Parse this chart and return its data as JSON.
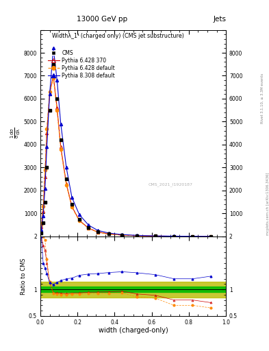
{
  "title_top": "13000 GeV pp",
  "title_right": "Jets",
  "plot_title": "Widthλ_1¹ (charged only) (CMS jet substructure)",
  "xlabel": "width (charged-only)",
  "ylabel_ratio": "Ratio to CMS",
  "watermark": "CMS_2021_I1920187",
  "right_label_top": "Rivet 3.1.10, ≥ 3.3M events",
  "right_label_bot": "mcplots.cern.ch [arXiv:1306.3436]",
  "xlim": [
    0.0,
    1.0
  ],
  "ylim_main": [
    0,
    9000
  ],
  "ylim_ratio": [
    0.5,
    2.0
  ],
  "yticks_main": [
    0,
    1000,
    2000,
    3000,
    4000,
    5000,
    6000,
    7000,
    8000,
    9000
  ],
  "ytick_labels_main": [
    "",
    "1000",
    "2000",
    "3000",
    "4000",
    "5000",
    "6000",
    "7000",
    "8000",
    ""
  ],
  "x_data": [
    0.005,
    0.015,
    0.025,
    0.035,
    0.05,
    0.07,
    0.09,
    0.11,
    0.14,
    0.17,
    0.21,
    0.26,
    0.31,
    0.37,
    0.44,
    0.52,
    0.62,
    0.72,
    0.82,
    0.92
  ],
  "cms_y": [
    150,
    600,
    1500,
    3000,
    5500,
    7500,
    6000,
    4200,
    2500,
    1400,
    750,
    380,
    200,
    110,
    60,
    35,
    18,
    10,
    5,
    2
  ],
  "pythia6_370_y": [
    400,
    1100,
    2600,
    4500,
    6200,
    7000,
    5600,
    3900,
    2300,
    1300,
    700,
    360,
    190,
    105,
    58,
    32,
    16,
    8,
    4,
    1.5
  ],
  "pythia6_def_y": [
    500,
    1300,
    2900,
    4700,
    6300,
    6900,
    5500,
    3800,
    2250,
    1270,
    680,
    350,
    185,
    102,
    56,
    30,
    15,
    7,
    3.5,
    1.3
  ],
  "pythia8_def_y": [
    300,
    900,
    2100,
    3900,
    6200,
    8200,
    6800,
    4900,
    3000,
    1700,
    950,
    490,
    260,
    145,
    80,
    46,
    23,
    12,
    6,
    2.5
  ],
  "cms_color": "#000000",
  "pythia6_370_color": "#cc0000",
  "pythia6_def_color": "#ff8800",
  "pythia8_def_color": "#0000cc",
  "green_band_color": "#00bb00",
  "yellow_band_color": "#bbbb00"
}
